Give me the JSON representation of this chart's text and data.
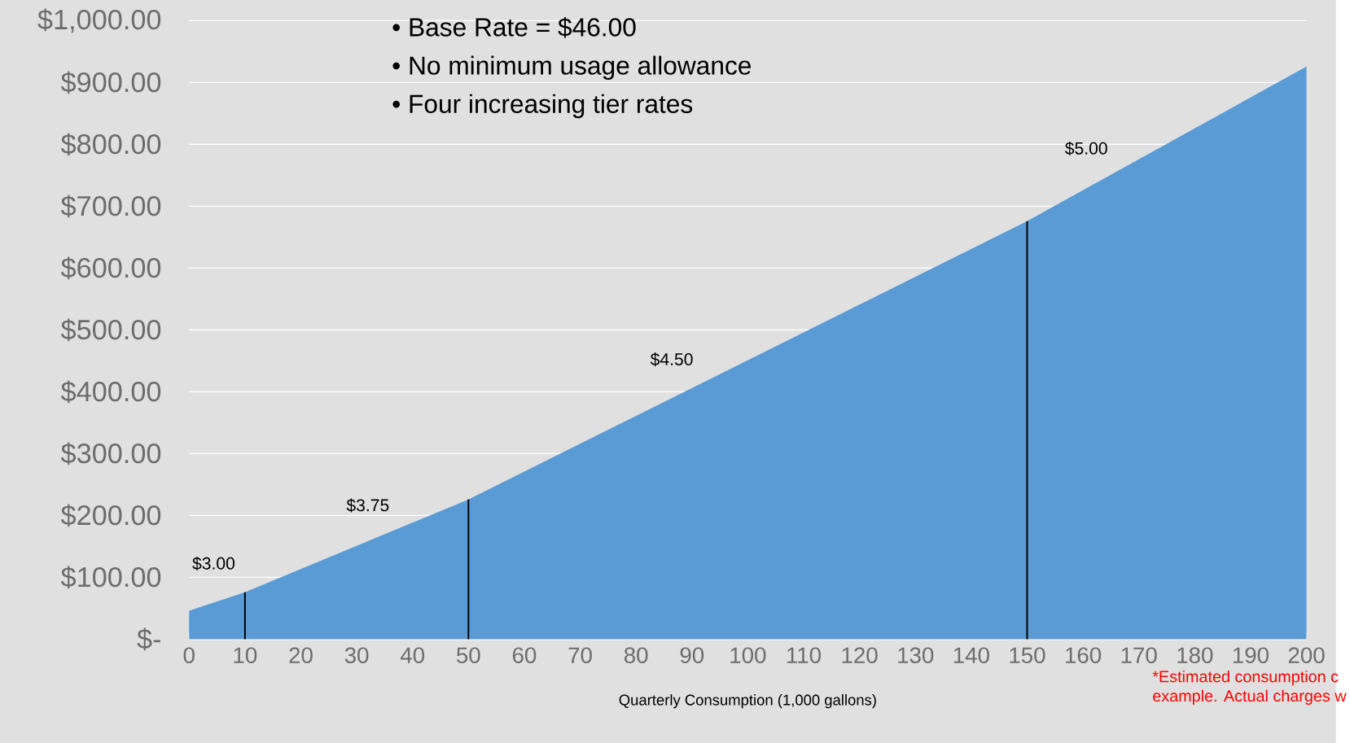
{
  "chart_data": {
    "type": "area",
    "xlabel": "Quarterly Consumption (1,000 gallons)",
    "x": [
      0,
      10,
      50,
      150,
      200
    ],
    "series": [
      {
        "color": "#5b9bd5",
        "values": [
          46,
          76,
          226,
          676,
          926
        ]
      },
      {
        "type": "line",
        "color": "#000000",
        "x": [
          10,
          10
        ],
        "values": [
          0,
          76
        ]
      },
      {
        "type": "line",
        "color": "#000000",
        "x": [
          50,
          50
        ],
        "values": [
          0,
          226
        ]
      },
      {
        "type": "line",
        "color": "#000000",
        "x": [
          150,
          150
        ],
        "values": [
          0,
          676
        ]
      }
    ],
    "xlim": [
      0,
      200
    ],
    "xticks": [
      0,
      10,
      20,
      30,
      40,
      50,
      60,
      70,
      80,
      90,
      100,
      110,
      120,
      130,
      140,
      150,
      160,
      170,
      180,
      190,
      200
    ],
    "ylim": [
      0,
      1000
    ],
    "yticks": [
      {
        "value": 0,
        "label": "$-"
      },
      {
        "value": 100,
        "label": "$100.00"
      },
      {
        "value": 200,
        "label": "$200.00"
      },
      {
        "value": 300,
        "label": "$300.00"
      },
      {
        "value": 400,
        "label": "$400.00"
      },
      {
        "value": 500,
        "label": "$500.00"
      },
      {
        "value": 600,
        "label": "$600.00"
      },
      {
        "value": 700,
        "label": "$700.00"
      },
      {
        "value": 800,
        "label": "$800.00"
      },
      {
        "value": 900,
        "label": "$900.00"
      },
      {
        "value": 1000,
        "label": "$1,000.00"
      }
    ],
    "grid": "y",
    "annotations": [
      "$3.00",
      "$3.75",
      "$4.50",
      "$5.00",
      "•    Base Rate = $46.00",
      "•    No minimum usage allowance",
      "•    Four increasing tier rates",
      "*Estimated consumption c",
      "example. Actual charges w"
    ]
  }
}
